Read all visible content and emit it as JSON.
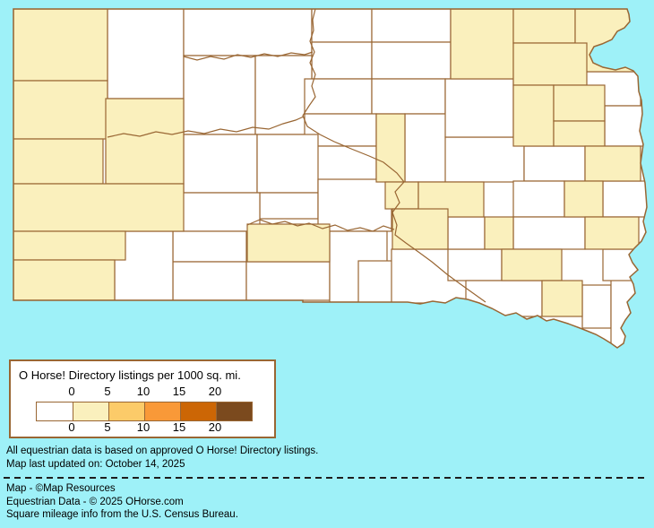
{
  "legend": {
    "title": "O Horse! Directory listings per 1000 sq. mi.",
    "tick_labels": [
      "0",
      "5",
      "10",
      "15",
      "20"
    ],
    "scale_colors": [
      "#ffffff",
      "#faf0bd",
      "#fccb69",
      "#f99938",
      "#cc6605",
      "#7b4a1e"
    ],
    "box_border_color": "#996633"
  },
  "map": {
    "state_name": "South Dakota",
    "background_color": "#9ef1f8",
    "county_border_color": "#996633",
    "fill_categories": {
      "0": "#ffffff",
      "0-5": "#faf0bd"
    },
    "counties": [
      {
        "id": "harding",
        "category": "0-5"
      },
      {
        "id": "butte",
        "category": "0-5"
      },
      {
        "id": "lawrence",
        "category": "0-5"
      },
      {
        "id": "meade",
        "category": "0-5"
      },
      {
        "id": "pennington",
        "category": "0-5"
      },
      {
        "id": "custer",
        "category": "0-5"
      },
      {
        "id": "fall-river",
        "category": "0-5"
      },
      {
        "id": "mellette",
        "category": "0-5"
      },
      {
        "id": "hyde",
        "category": "0-5"
      },
      {
        "id": "buffalo",
        "category": "0-5"
      },
      {
        "id": "jerauld",
        "category": "0-5"
      },
      {
        "id": "brule",
        "category": "0-5"
      },
      {
        "id": "sanborn",
        "category": "0-5"
      },
      {
        "id": "brown",
        "category": "0-5"
      },
      {
        "id": "marshall",
        "category": "0-5"
      },
      {
        "id": "roberts",
        "category": "0-5"
      },
      {
        "id": "day",
        "category": "0-5"
      },
      {
        "id": "clark",
        "category": "0-5"
      },
      {
        "id": "codington",
        "category": "0-5"
      },
      {
        "id": "hamlin",
        "category": "0-5"
      },
      {
        "id": "brookings",
        "category": "0-5"
      },
      {
        "id": "lake",
        "category": "0-5"
      },
      {
        "id": "mccook",
        "category": "0-5"
      },
      {
        "id": "hutchinson",
        "category": "0-5"
      },
      {
        "id": "yankton",
        "category": "0-5"
      },
      {
        "id": "perkins",
        "category": "0"
      },
      {
        "id": "corson",
        "category": "0"
      },
      {
        "id": "campbell",
        "category": "0"
      },
      {
        "id": "mcpherson",
        "category": "0"
      },
      {
        "id": "walworth",
        "category": "0"
      },
      {
        "id": "edmunds",
        "category": "0"
      },
      {
        "id": "ziebach",
        "category": "0"
      },
      {
        "id": "dewey",
        "category": "0"
      },
      {
        "id": "potter",
        "category": "0"
      },
      {
        "id": "faulk",
        "category": "0"
      },
      {
        "id": "sully",
        "category": "0"
      },
      {
        "id": "hand",
        "category": "0"
      },
      {
        "id": "hughes",
        "category": "0"
      },
      {
        "id": "haakon",
        "category": "0"
      },
      {
        "id": "stanley",
        "category": "0"
      },
      {
        "id": "jones",
        "category": "0"
      },
      {
        "id": "lyman",
        "category": "0"
      },
      {
        "id": "jackson",
        "category": "0"
      },
      {
        "id": "washabaugh",
        "category": "0"
      },
      {
        "id": "bennett",
        "category": "0"
      },
      {
        "id": "todd",
        "category": "0"
      },
      {
        "id": "shannon",
        "category": "0"
      },
      {
        "id": "tripp",
        "category": "0"
      },
      {
        "id": "gregory",
        "category": "0"
      },
      {
        "id": "charles-mix",
        "category": "0"
      },
      {
        "id": "douglas",
        "category": "0"
      },
      {
        "id": "aurora",
        "category": "0"
      },
      {
        "id": "beadle",
        "category": "0"
      },
      {
        "id": "spink",
        "category": "0"
      },
      {
        "id": "grant",
        "category": "0"
      },
      {
        "id": "deuel",
        "category": "0"
      },
      {
        "id": "kingsbury",
        "category": "0"
      },
      {
        "id": "miner",
        "category": "0"
      },
      {
        "id": "moody",
        "category": "0"
      },
      {
        "id": "hanson",
        "category": "0"
      },
      {
        "id": "bon-homme",
        "category": "0"
      },
      {
        "id": "clay",
        "category": "0"
      },
      {
        "id": "union",
        "category": "0"
      },
      {
        "id": "lincoln",
        "category": "0"
      }
    ]
  },
  "footnotes": [
    "All equestrian data is based on approved O Horse! Directory listings.",
    "Map last updated on: October 14, 2025"
  ],
  "credits": [
    "Map - ©Map Resources",
    "Equestrian Data - © 2025 OHorse.com",
    "Square mileage info from the U.S. Census Bureau."
  ]
}
